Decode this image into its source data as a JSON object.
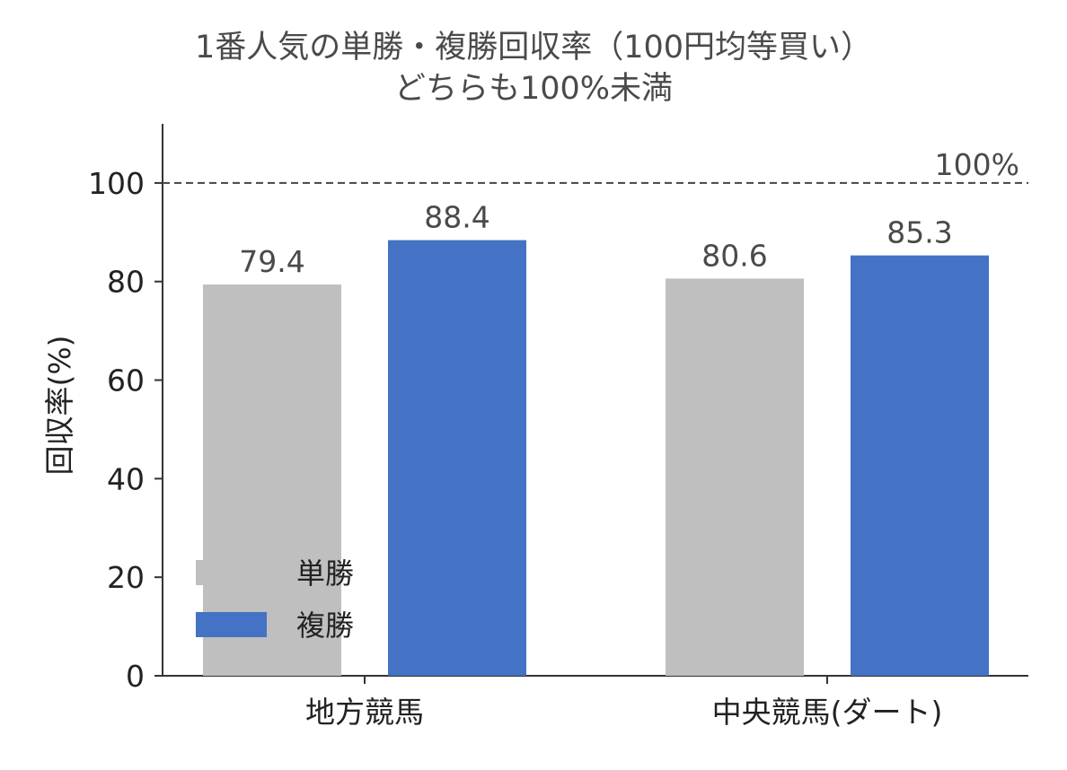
{
  "chart_data": {
    "type": "bar",
    "title": "1番人気の単勝・複勝回収率（100円均等買い）",
    "subtitle": "どちらも100%未満",
    "ylabel": "回収率(%)",
    "xlabel": "",
    "categories": [
      "地方競馬",
      "中央競馬(ダート)"
    ],
    "series": [
      {
        "name": "単勝",
        "values": [
          79.4,
          80.6
        ],
        "color": "#bfbfbf"
      },
      {
        "name": "複勝",
        "values": [
          88.4,
          85.3
        ],
        "color": "#4472c4"
      }
    ],
    "ylim": [
      0,
      112
    ],
    "yticks": [
      0,
      20,
      40,
      60,
      80,
      100
    ],
    "reference_line": {
      "value": 100,
      "label": "100%",
      "style": "dashed"
    },
    "legend": "lower-left",
    "grid": false
  }
}
